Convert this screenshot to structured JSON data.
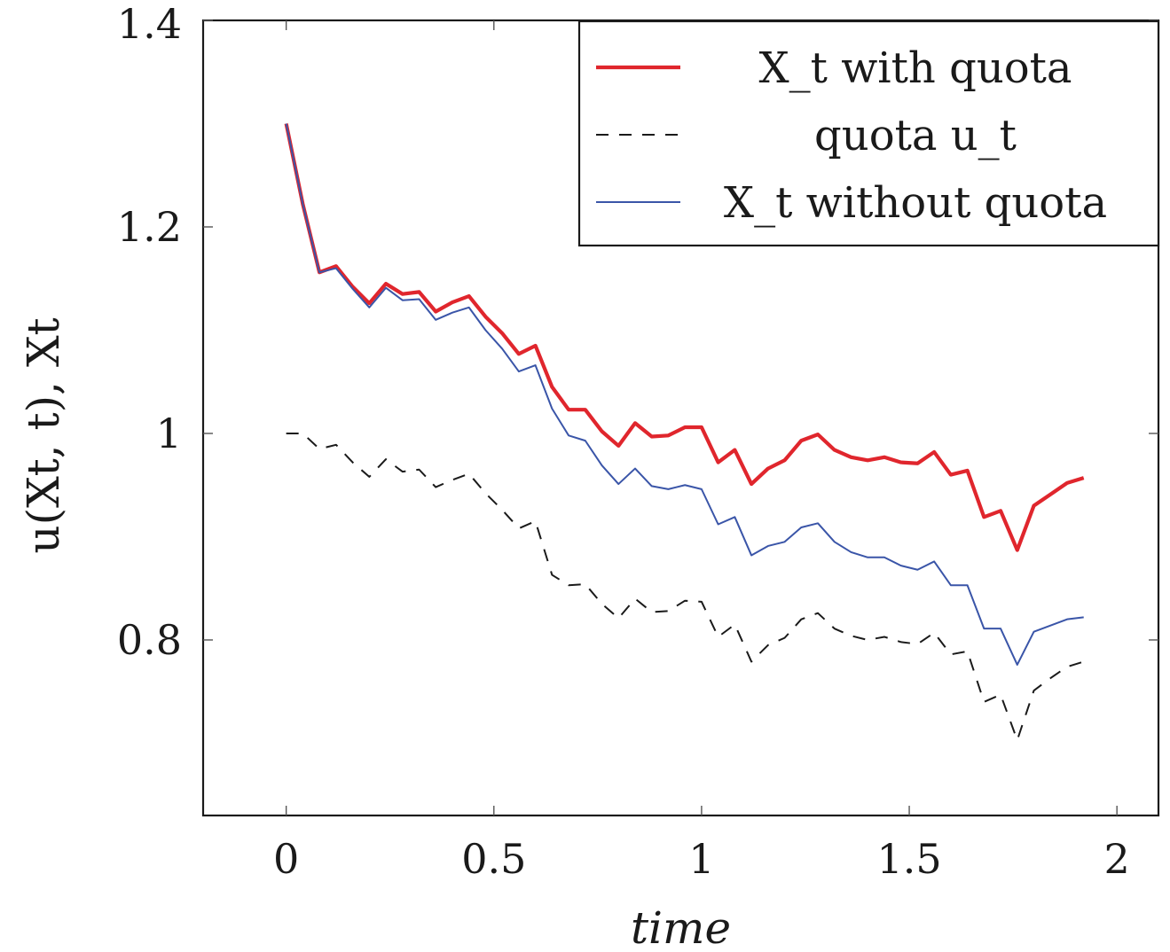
{
  "chart_data": {
    "type": "line",
    "xlabel": "time",
    "ylabel": "u(Xt, t),   Xt",
    "xlim": [
      -0.2,
      2.1
    ],
    "ylim": [
      0.63,
      1.4
    ],
    "xticks": [
      {
        "value": 0,
        "label": "0"
      },
      {
        "value": 0.5,
        "label": "0.5"
      },
      {
        "value": 1,
        "label": "1"
      },
      {
        "value": 1.5,
        "label": "1.5"
      },
      {
        "value": 2,
        "label": "2"
      }
    ],
    "yticks": [
      {
        "value": 0.8,
        "label": "0.8"
      },
      {
        "value": 1.0,
        "label": "1"
      },
      {
        "value": 1.2,
        "label": "1.2"
      },
      {
        "value": 1.4,
        "label": "1.4"
      }
    ],
    "grid": false,
    "legend_position": "top-right",
    "x": [
      0,
      0.04,
      0.08,
      0.12,
      0.16,
      0.2,
      0.24,
      0.28,
      0.32,
      0.36,
      0.4,
      0.44,
      0.48,
      0.52,
      0.56,
      0.6,
      0.64,
      0.68,
      0.72,
      0.76,
      0.8,
      0.84,
      0.88,
      0.92,
      0.96,
      1.0,
      1.04,
      1.08,
      1.12,
      1.16,
      1.2,
      1.24,
      1.28,
      1.32,
      1.36,
      1.4,
      1.44,
      1.48,
      1.52,
      1.56,
      1.6,
      1.64,
      1.68,
      1.72,
      1.76,
      1.8,
      1.84,
      1.88,
      1.92
    ],
    "series": [
      {
        "name": "X_t with quota",
        "color": "#e0262d",
        "style": "solid-thick",
        "values": [
          1.3,
          1.222,
          1.156,
          1.162,
          1.142,
          1.126,
          1.145,
          1.135,
          1.137,
          1.118,
          1.127,
          1.133,
          1.113,
          1.097,
          1.077,
          1.085,
          1.045,
          1.023,
          1.023,
          1.002,
          0.988,
          1.01,
          0.997,
          0.998,
          1.006,
          1.006,
          0.972,
          0.984,
          0.951,
          0.966,
          0.974,
          0.993,
          0.999,
          0.984,
          0.977,
          0.974,
          0.977,
          0.972,
          0.971,
          0.982,
          0.96,
          0.964,
          0.919,
          0.925,
          0.887,
          0.93,
          0.941,
          0.952,
          0.957
        ]
      },
      {
        "name": "quota u_t",
        "color": "#1a1a1a",
        "style": "dashed",
        "values": [
          1.0,
          1.0,
          0.985,
          0.989,
          0.972,
          0.958,
          0.975,
          0.963,
          0.965,
          0.948,
          0.955,
          0.961,
          0.942,
          0.926,
          0.908,
          0.915,
          0.863,
          0.853,
          0.854,
          0.835,
          0.821,
          0.84,
          0.827,
          0.828,
          0.838,
          0.837,
          0.803,
          0.815,
          0.779,
          0.795,
          0.802,
          0.82,
          0.826,
          0.811,
          0.804,
          0.8,
          0.803,
          0.798,
          0.796,
          0.807,
          0.786,
          0.789,
          0.74,
          0.747,
          0.703,
          0.751,
          0.763,
          0.774,
          0.779
        ]
      },
      {
        "name": "X_t without quota",
        "color": "#3a55a8",
        "style": "solid-thin",
        "values": [
          1.3,
          1.222,
          1.156,
          1.16,
          1.14,
          1.122,
          1.141,
          1.129,
          1.13,
          1.11,
          1.117,
          1.122,
          1.1,
          1.082,
          1.06,
          1.066,
          1.024,
          0.998,
          0.993,
          0.969,
          0.951,
          0.966,
          0.949,
          0.946,
          0.95,
          0.946,
          0.912,
          0.919,
          0.882,
          0.891,
          0.895,
          0.909,
          0.913,
          0.895,
          0.885,
          0.88,
          0.88,
          0.872,
          0.868,
          0.876,
          0.853,
          0.853,
          0.811,
          0.811,
          0.776,
          0.808,
          0.814,
          0.82,
          0.822
        ]
      }
    ]
  }
}
